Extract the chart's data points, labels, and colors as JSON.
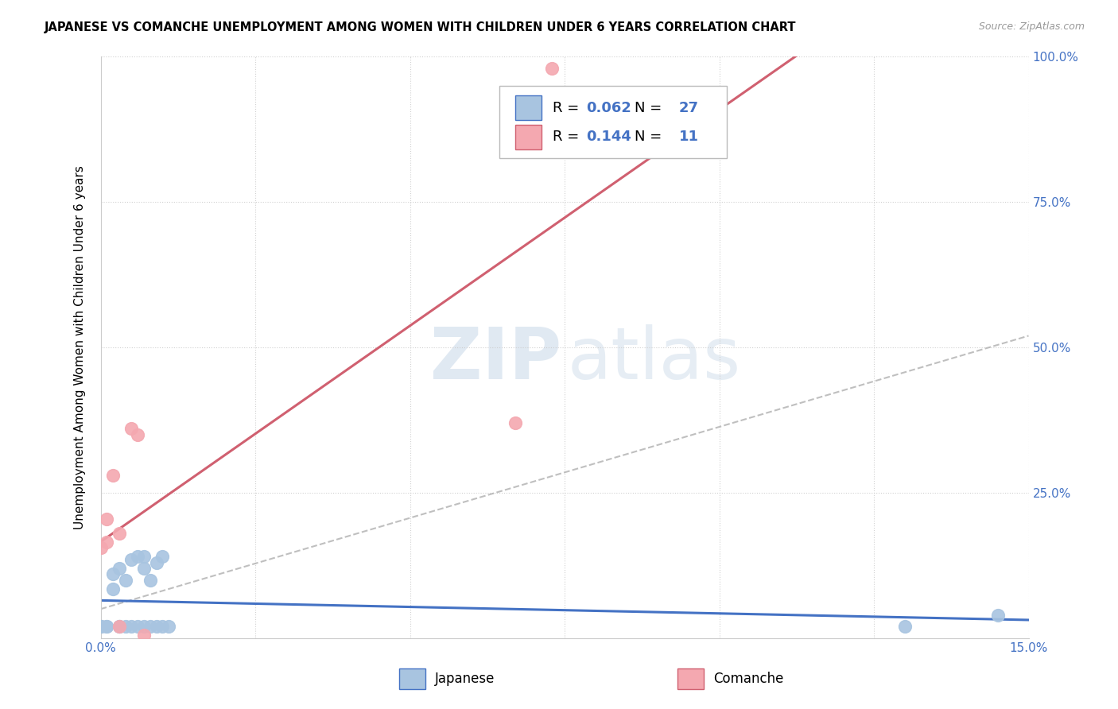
{
  "title": "JAPANESE VS COMANCHE UNEMPLOYMENT AMONG WOMEN WITH CHILDREN UNDER 6 YEARS CORRELATION CHART",
  "source": "Source: ZipAtlas.com",
  "ylabel": "Unemployment Among Women with Children Under 6 years",
  "xlim": [
    0.0,
    0.15
  ],
  "ylim": [
    0.0,
    1.0
  ],
  "xticks": [
    0.0,
    0.025,
    0.05,
    0.075,
    0.1,
    0.125,
    0.15
  ],
  "xtick_labels": [
    "0.0%",
    "",
    "",
    "",
    "",
    "",
    "15.0%"
  ],
  "yticks": [
    0.0,
    0.25,
    0.5,
    0.75,
    1.0
  ],
  "ytick_labels_right": [
    "",
    "25.0%",
    "50.0%",
    "75.0%",
    "100.0%"
  ],
  "japanese_color": "#a8c4e0",
  "japanese_edge_color": "#4472c4",
  "comanche_color": "#f4a8b0",
  "comanche_edge_color": "#d06070",
  "japanese_line_color": "#4472c4",
  "comanche_line_color": "#d06070",
  "label_color": "#4472c4",
  "r_japanese": 0.062,
  "n_japanese": 27,
  "r_comanche": 0.144,
  "n_comanche": 11,
  "japanese_x": [
    0.0,
    0.0,
    0.001,
    0.001,
    0.002,
    0.002,
    0.003,
    0.003,
    0.003,
    0.004,
    0.004,
    0.005,
    0.005,
    0.006,
    0.006,
    0.007,
    0.007,
    0.007,
    0.008,
    0.008,
    0.009,
    0.009,
    0.01,
    0.01,
    0.011,
    0.13,
    0.145
  ],
  "japanese_y": [
    0.02,
    0.02,
    0.02,
    0.02,
    0.085,
    0.11,
    0.02,
    0.12,
    0.02,
    0.02,
    0.1,
    0.02,
    0.135,
    0.14,
    0.02,
    0.02,
    0.12,
    0.14,
    0.1,
    0.02,
    0.13,
    0.02,
    0.14,
    0.02,
    0.02,
    0.02,
    0.04
  ],
  "comanche_x": [
    0.0,
    0.001,
    0.001,
    0.002,
    0.003,
    0.003,
    0.005,
    0.006,
    0.007,
    0.067,
    0.073
  ],
  "comanche_y": [
    0.155,
    0.165,
    0.205,
    0.28,
    0.18,
    0.02,
    0.36,
    0.35,
    0.005,
    0.37,
    0.98
  ],
  "background_color": "#ffffff",
  "grid_color": "#cccccc",
  "title_fontsize": 10.5,
  "tick_fontsize": 11,
  "watermark_fontsize": 65
}
